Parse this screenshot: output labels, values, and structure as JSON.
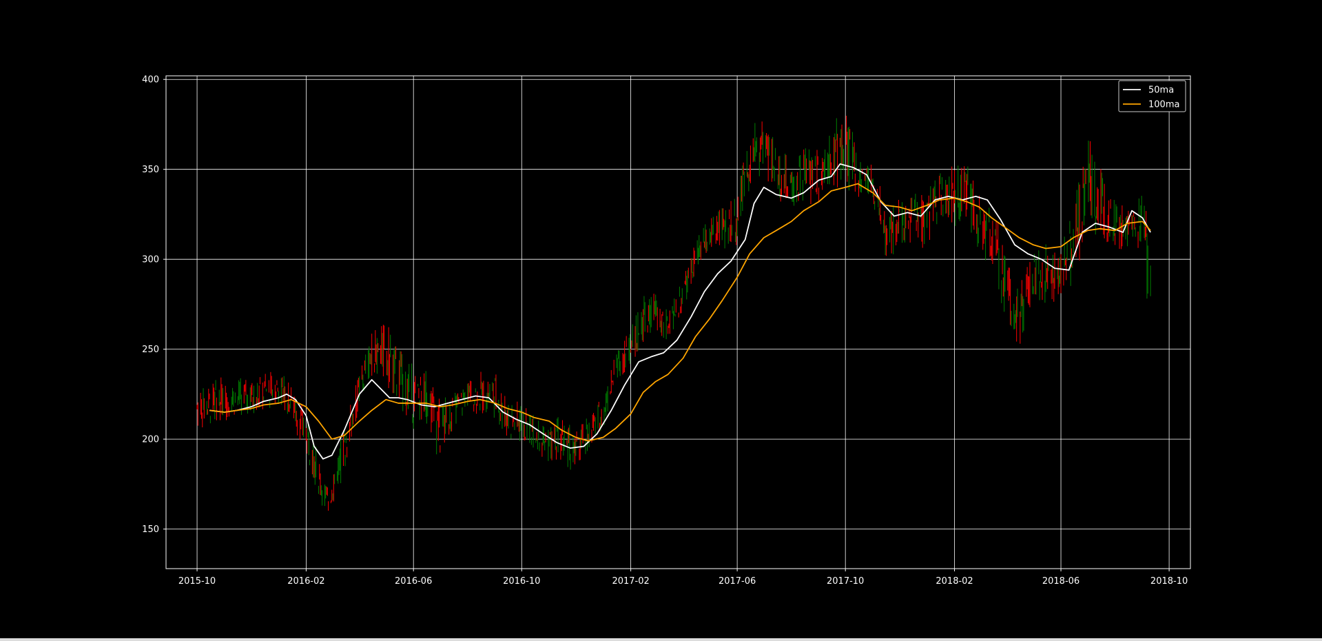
{
  "chart_data": {
    "type": "line",
    "title": "",
    "xlabel": "",
    "ylabel": "",
    "xlim": [
      "2015-08-27",
      "2018-10-25"
    ],
    "ylim": [
      128,
      402
    ],
    "x_ticks": [
      "2015-10",
      "2016-02",
      "2016-06",
      "2016-10",
      "2017-02",
      "2017-06",
      "2017-10",
      "2018-02",
      "2018-06",
      "2018-10"
    ],
    "y_ticks": [
      "400",
      "350",
      "300",
      "250",
      "200",
      "150"
    ],
    "grid": true,
    "legend": {
      "placement": "upper-right",
      "entries": [
        {
          "label": "50ma",
          "color": "#ffffff"
        },
        {
          "label": "100ma",
          "color": "#ffa500"
        }
      ]
    },
    "candle_colors": {
      "up": "#008000",
      "down": "#ff0000"
    },
    "price_range": {
      "x": [
        "2015-10-01",
        "2015-11-01",
        "2015-12-01",
        "2016-01-01",
        "2016-01-15",
        "2016-02-01",
        "2016-02-10",
        "2016-02-25",
        "2016-03-15",
        "2016-04-01",
        "2016-04-15",
        "2016-05-01",
        "2016-05-15",
        "2016-06-01",
        "2016-06-15",
        "2016-07-01",
        "2016-07-15",
        "2016-08-01",
        "2016-09-01",
        "2016-09-15",
        "2016-10-01",
        "2016-10-15",
        "2016-11-01",
        "2016-11-15",
        "2016-12-01",
        "2017-01-01",
        "2017-01-15",
        "2017-02-01",
        "2017-02-15",
        "2017-03-01",
        "2017-03-15",
        "2017-04-01",
        "2017-04-15",
        "2017-05-01",
        "2017-05-15",
        "2017-06-01",
        "2017-06-15",
        "2017-07-01",
        "2017-07-15",
        "2017-08-01",
        "2017-08-15",
        "2017-09-01",
        "2017-09-15",
        "2017-10-01",
        "2017-10-15",
        "2017-11-01",
        "2017-11-15",
        "2017-12-01",
        "2017-12-15",
        "2018-01-01",
        "2018-01-15",
        "2018-02-01",
        "2018-02-15",
        "2018-03-01",
        "2018-03-15",
        "2018-04-01",
        "2018-04-15",
        "2018-05-01",
        "2018-05-15",
        "2018-06-01",
        "2018-06-15",
        "2018-07-01",
        "2018-07-15",
        "2018-08-01",
        "2018-08-15",
        "2018-09-01",
        "2018-09-10"
      ],
      "low": [
        205,
        210,
        212,
        218,
        210,
        190,
        175,
        155,
        180,
        215,
        235,
        230,
        215,
        205,
        210,
        185,
        205,
        215,
        210,
        195,
        195,
        195,
        185,
        185,
        180,
        205,
        230,
        240,
        250,
        255,
        255,
        270,
        290,
        300,
        305,
        305,
        340,
        345,
        335,
        325,
        330,
        330,
        340,
        335,
        335,
        330,
        300,
        305,
        305,
        305,
        320,
        315,
        320,
        300,
        295,
        260,
        245,
        270,
        275,
        275,
        285,
        315,
        310,
        305,
        300,
        305,
        255
      ],
      "high": [
        230,
        235,
        235,
        240,
        232,
        215,
        200,
        175,
        210,
        240,
        260,
        268,
        255,
        240,
        240,
        225,
        225,
        235,
        240,
        230,
        220,
        215,
        210,
        215,
        205,
        225,
        250,
        265,
        280,
        285,
        270,
        290,
        310,
        325,
        330,
        340,
        375,
        385,
        365,
        355,
        365,
        365,
        380,
        385,
        360,
        355,
        330,
        335,
        340,
        340,
        350,
        355,
        355,
        335,
        330,
        310,
        290,
        305,
        310,
        305,
        330,
        370,
        355,
        335,
        330,
        340,
        325
      ]
    },
    "series": [
      {
        "name": "50ma",
        "color": "#ffffff",
        "x": [
          "2015-10-15",
          "2015-11-01",
          "2015-11-15",
          "2015-12-01",
          "2015-12-15",
          "2016-01-01",
          "2016-01-10",
          "2016-01-20",
          "2016-02-01",
          "2016-02-10",
          "2016-02-20",
          "2016-03-01",
          "2016-03-15",
          "2016-04-01",
          "2016-04-15",
          "2016-04-25",
          "2016-05-05",
          "2016-05-15",
          "2016-05-25",
          "2016-06-10",
          "2016-06-25",
          "2016-07-10",
          "2016-07-25",
          "2016-08-10",
          "2016-08-25",
          "2016-09-10",
          "2016-09-25",
          "2016-10-10",
          "2016-10-25",
          "2016-11-10",
          "2016-11-25",
          "2016-12-10",
          "2016-12-25",
          "2017-01-10",
          "2017-01-25",
          "2017-02-10",
          "2017-02-25",
          "2017-03-10",
          "2017-03-25",
          "2017-04-10",
          "2017-04-25",
          "2017-05-10",
          "2017-05-25",
          "2017-06-10",
          "2017-06-20",
          "2017-07-01",
          "2017-07-15",
          "2017-08-01",
          "2017-08-15",
          "2017-09-01",
          "2017-09-15",
          "2017-09-25",
          "2017-10-10",
          "2017-10-25",
          "2017-11-10",
          "2017-11-25",
          "2017-12-10",
          "2017-12-25",
          "2018-01-10",
          "2018-01-25",
          "2018-02-10",
          "2018-02-25",
          "2018-03-10",
          "2018-03-25",
          "2018-04-10",
          "2018-04-25",
          "2018-05-10",
          "2018-05-25",
          "2018-06-10",
          "2018-06-25",
          "2018-07-10",
          "2018-07-25",
          "2018-08-10",
          "2018-08-20",
          "2018-09-01",
          "2018-09-10"
        ],
        "y": [
          216,
          215,
          216,
          218,
          221,
          223,
          225,
          222,
          213,
          196,
          189,
          191,
          205,
          225,
          233,
          228,
          223,
          223,
          222,
          219,
          218,
          220,
          222,
          224,
          223,
          215,
          211,
          208,
          203,
          198,
          195,
          196,
          203,
          216,
          230,
          243,
          246,
          248,
          255,
          268,
          282,
          292,
          299,
          311,
          331,
          340,
          336,
          334,
          337,
          344,
          346,
          353,
          351,
          347,
          332,
          324,
          326,
          324,
          333,
          335,
          333,
          335,
          333,
          322,
          308,
          303,
          300,
          295,
          294,
          315,
          320,
          318,
          315,
          327,
          323,
          315
        ]
      },
      {
        "name": "100ma",
        "color": "#ffa500",
        "x": [
          "2015-10-15",
          "2015-11-01",
          "2015-11-15",
          "2015-12-01",
          "2015-12-15",
          "2016-01-01",
          "2016-01-15",
          "2016-02-01",
          "2016-02-15",
          "2016-03-01",
          "2016-03-15",
          "2016-04-01",
          "2016-04-15",
          "2016-05-01",
          "2016-05-15",
          "2016-06-01",
          "2016-06-15",
          "2016-07-01",
          "2016-07-15",
          "2016-08-01",
          "2016-08-15",
          "2016-09-01",
          "2016-09-15",
          "2016-10-01",
          "2016-10-15",
          "2016-11-01",
          "2016-11-15",
          "2016-12-01",
          "2016-12-15",
          "2017-01-01",
          "2017-01-15",
          "2017-02-01",
          "2017-02-15",
          "2017-03-01",
          "2017-03-15",
          "2017-04-01",
          "2017-04-15",
          "2017-05-01",
          "2017-05-15",
          "2017-06-01",
          "2017-06-15",
          "2017-07-01",
          "2017-07-15",
          "2017-08-01",
          "2017-08-15",
          "2017-09-01",
          "2017-09-15",
          "2017-10-01",
          "2017-10-15",
          "2017-11-01",
          "2017-11-15",
          "2017-12-01",
          "2017-12-15",
          "2018-01-01",
          "2018-01-15",
          "2018-02-01",
          "2018-02-15",
          "2018-03-01",
          "2018-03-15",
          "2018-04-01",
          "2018-04-15",
          "2018-05-01",
          "2018-05-15",
          "2018-06-01",
          "2018-06-15",
          "2018-07-01",
          "2018-07-15",
          "2018-08-01",
          "2018-08-15",
          "2018-09-01",
          "2018-09-10"
        ],
        "y": [
          216,
          215,
          216,
          217,
          219,
          220,
          222,
          218,
          210,
          200,
          202,
          210,
          216,
          222,
          220,
          220,
          220,
          218,
          219,
          221,
          222,
          220,
          217,
          215,
          212,
          210,
          205,
          201,
          199,
          201,
          206,
          214,
          226,
          232,
          236,
          245,
          257,
          267,
          277,
          290,
          303,
          312,
          316,
          321,
          327,
          332,
          338,
          340,
          342,
          337,
          330,
          329,
          327,
          330,
          333,
          334,
          332,
          329,
          323,
          317,
          312,
          308,
          306,
          307,
          312,
          316,
          317,
          316,
          320,
          321,
          316
        ]
      }
    ]
  }
}
